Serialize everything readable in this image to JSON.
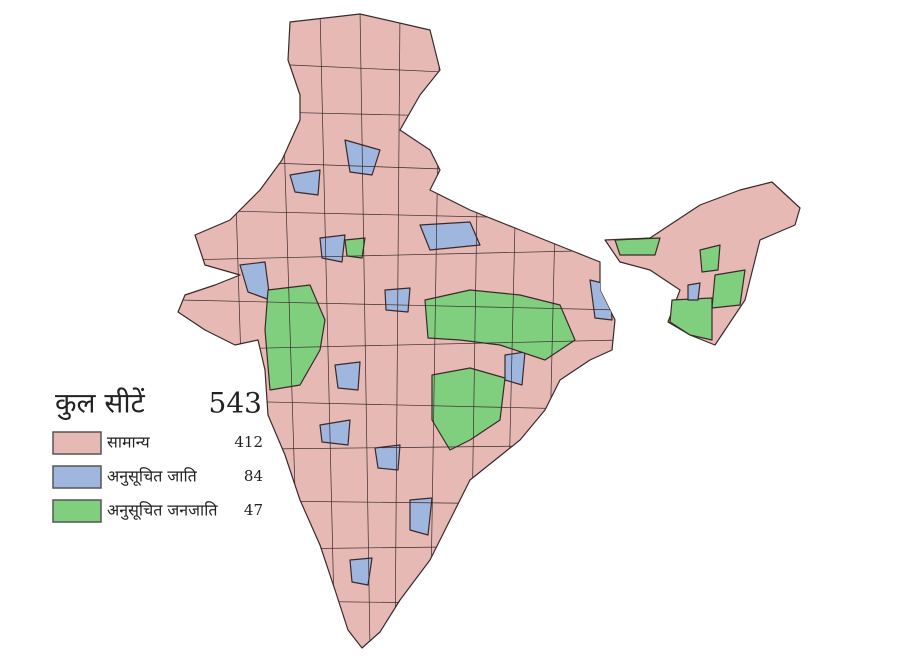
{
  "legend": {
    "title": "कुल सीटें",
    "total": 543,
    "items": [
      {
        "label": "सामान्य",
        "value": 412,
        "color": "#e6b9b5"
      },
      {
        "label": "अनुसूचित जाति",
        "value": 84,
        "color": "#9fb6de"
      },
      {
        "label": "अनुसूचित जनजाति",
        "value": 47,
        "color": "#7fcf7f"
      }
    ]
  }
}
